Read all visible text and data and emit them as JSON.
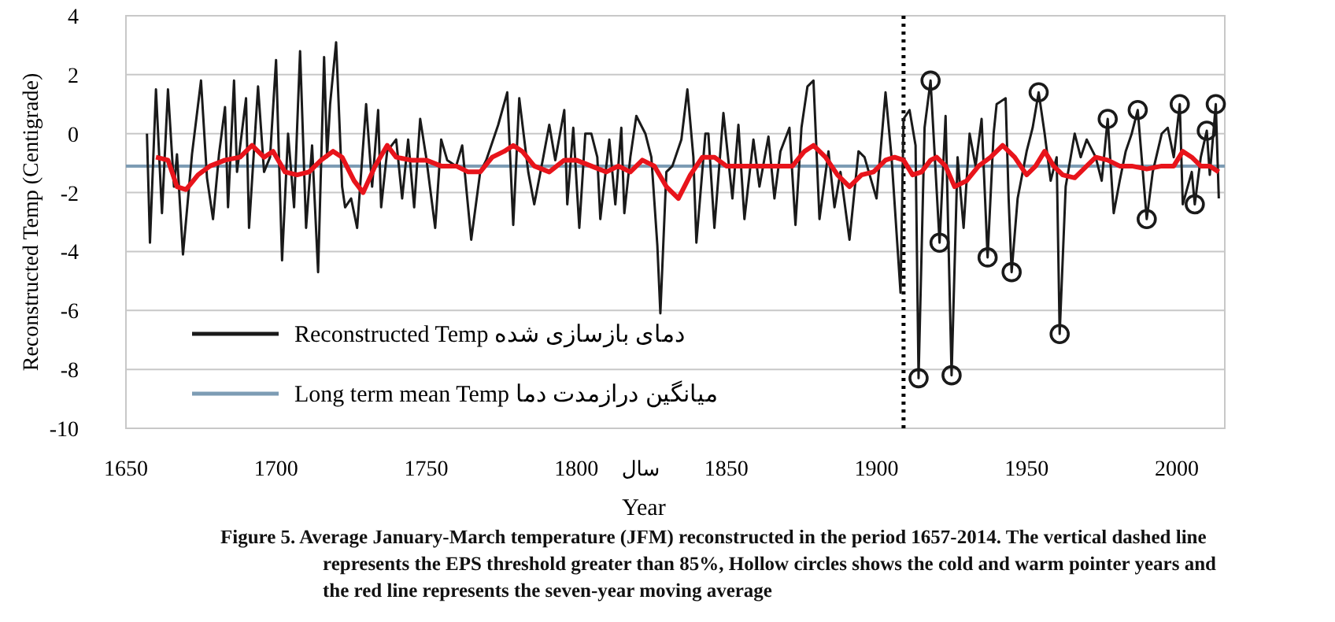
{
  "chart_data": {
    "type": "line",
    "xlabel": "Year",
    "ylabel": "Reconstructed Temp (Centigrade)",
    "annotations": [
      "سال",
      "Figure 5. Average January-March temperature (JFM) reconstructed in the period 1657-2014. The vertical dashed line represents the EPS threshold greater than 85%, Hollow circles shows the cold and warm pointer years and the red line represents the seven-year moving average"
    ],
    "xlim": [
      1650,
      2016
    ],
    "ylim": [
      -10,
      4
    ],
    "xticks": [
      1650,
      1700,
      1750,
      1800,
      1850,
      1900,
      1950,
      2000
    ],
    "yticks": [
      -10,
      -8,
      -6,
      -4,
      -2,
      0,
      2,
      4
    ],
    "grid": "y",
    "legend": "bottom left",
    "series": [
      {
        "name": "Reconstructed Temp دمای بازسازی شده",
        "color": "#1a1a1a",
        "x": [
          1657,
          1658,
          1660,
          1662,
          1664,
          1666,
          1667,
          1669,
          1672,
          1675,
          1677,
          1679,
          1681,
          1683,
          1684,
          1686,
          1687,
          1690,
          1691,
          1694,
          1696,
          1698,
          1700,
          1702,
          1704,
          1706,
          1708,
          1710,
          1712,
          1714,
          1716,
          1717,
          1718,
          1720,
          1722,
          1723,
          1725,
          1727,
          1730,
          1732,
          1734,
          1735,
          1737,
          1740,
          1742,
          1744,
          1746,
          1748,
          1750,
          1753,
          1755,
          1757,
          1760,
          1762,
          1765,
          1768,
          1770,
          1774,
          1777,
          1779,
          1781,
          1784,
          1786,
          1789,
          1791,
          1793,
          1796,
          1797,
          1799,
          1801,
          1803,
          1805,
          1807,
          1808,
          1811,
          1813,
          1815,
          1816,
          1818,
          1820,
          1823,
          1825,
          1827,
          1828,
          1830,
          1832,
          1835,
          1837,
          1839,
          1840,
          1843,
          1844,
          1846,
          1849,
          1852,
          1854,
          1856,
          1859,
          1861,
          1864,
          1866,
          1868,
          1871,
          1873,
          1875,
          1877,
          1879,
          1881,
          1884,
          1886,
          1888,
          1891,
          1894,
          1896,
          1900,
          1903,
          1905,
          1908,
          1909,
          1911,
          1913,
          1914,
          1916,
          1918,
          1921,
          1923,
          1925,
          1927,
          1929,
          1931,
          1933,
          1935,
          1937,
          1939,
          1940,
          1943,
          1944,
          1945,
          1947,
          1950,
          1952,
          1954,
          1956,
          1958,
          1960,
          1961,
          1963,
          1966,
          1968,
          1970,
          1973,
          1975,
          1977,
          1979,
          1981,
          1983,
          1985,
          1987,
          1990,
          1992,
          1995,
          1997,
          1999,
          2001,
          2002,
          2005,
          2006,
          2008,
          2010,
          2011,
          2013,
          2014
        ],
        "values": [
          0,
          -3.7,
          1.5,
          -2.7,
          1.5,
          -1.8,
          -0.7,
          -4.1,
          -0.7,
          1.8,
          -1.5,
          -2.9,
          -0.7,
          0.9,
          -2.5,
          1.8,
          -1.3,
          1.2,
          -3.2,
          1.6,
          -1.3,
          -0.8,
          2.5,
          -4.3,
          0,
          -2.5,
          2.8,
          -3.2,
          -0.4,
          -4.7,
          2.6,
          -0.8,
          1.0,
          3.1,
          -1.8,
          -2.5,
          -2.2,
          -3.2,
          1.0,
          -1.8,
          0.8,
          -2.5,
          -0.6,
          -0.2,
          -2.2,
          -0.2,
          -2.5,
          0.5,
          -0.8,
          -3.2,
          -0.2,
          -0.9,
          -1.1,
          -0.4,
          -3.6,
          -1.3,
          -0.9,
          0.3,
          1.4,
          -3.1,
          1.2,
          -1.3,
          -2.4,
          -0.8,
          0.3,
          -0.9,
          0.8,
          -2.4,
          0.2,
          -3.2,
          0,
          0,
          -0.8,
          -2.9,
          -0.2,
          -2.4,
          0.2,
          -2.7,
          -0.8,
          0.6,
          0,
          -0.8,
          -3.8,
          -6.1,
          -1.3,
          -1.1,
          -0.2,
          1.5,
          -0.8,
          -3.7,
          0,
          0,
          -3.2,
          0.7,
          -2.2,
          0.3,
          -2.9,
          -0.2,
          -1.8,
          -0.1,
          -2.2,
          -0.6,
          0.2,
          -3.1,
          0.2,
          1.6,
          1.8,
          -2.9,
          -0.6,
          -2.5,
          -1.3,
          -3.6,
          -0.6,
          -0.8,
          -2.2,
          1.4,
          -0.8,
          -5.4,
          0.5,
          0.8,
          -0.4,
          -8.3,
          0.2,
          1.8,
          -3.7,
          0.6,
          -8.2,
          -0.8,
          -3.2,
          0,
          -1.1,
          0.5,
          -4.2,
          0,
          1.0,
          1.2,
          -2.2,
          -4.7,
          -2.2,
          -0.6,
          0.2,
          1.4,
          0,
          -1.6,
          -0.8,
          -6.8,
          -1.8,
          0,
          -0.8,
          -0.2,
          -0.8,
          -1.6,
          0.5,
          -2.7,
          -1.6,
          -0.6,
          0,
          0.8,
          -2.9,
          -1.3,
          0,
          0.2,
          -0.8,
          1.0,
          -2.4,
          -1.3,
          -2.4,
          -0.8,
          0.1,
          -1.4,
          1.0,
          -2.2
        ]
      },
      {
        "color": "#e8141b",
        "x": [
          1660,
          1664,
          1667,
          1670,
          1674,
          1678,
          1683,
          1688,
          1692,
          1696,
          1699,
          1703,
          1707,
          1711,
          1715,
          1719,
          1722,
          1726,
          1729,
          1733,
          1737,
          1740,
          1745,
          1750,
          1755,
          1760,
          1764,
          1768,
          1772,
          1776,
          1779,
          1782,
          1786,
          1791,
          1796,
          1800,
          1805,
          1810,
          1814,
          1818,
          1822,
          1826,
          1830,
          1834,
          1838,
          1842,
          1846,
          1850,
          1856,
          1862,
          1868,
          1872,
          1876,
          1879,
          1883,
          1887,
          1891,
          1895,
          1899,
          1903,
          1906,
          1909,
          1912,
          1915,
          1918,
          1920,
          1923,
          1926,
          1930,
          1934,
          1938,
          1942,
          1946,
          1950,
          1953,
          1956,
          1959,
          1962,
          1966,
          1970,
          1973,
          1977,
          1981,
          1985,
          1990,
          1995,
          1999,
          2002,
          2005,
          2008,
          2011,
          2014
        ],
        "values": [
          -0.8,
          -0.9,
          -1.8,
          -1.9,
          -1.4,
          -1.1,
          -0.9,
          -0.8,
          -0.4,
          -0.8,
          -0.6,
          -1.3,
          -1.4,
          -1.3,
          -0.9,
          -0.6,
          -0.8,
          -1.6,
          -2.0,
          -1.1,
          -0.4,
          -0.8,
          -0.9,
          -0.9,
          -1.1,
          -1.1,
          -1.3,
          -1.3,
          -0.8,
          -0.6,
          -0.4,
          -0.6,
          -1.1,
          -1.3,
          -0.9,
          -0.9,
          -1.1,
          -1.3,
          -1.1,
          -1.3,
          -0.9,
          -1.1,
          -1.8,
          -2.2,
          -1.4,
          -0.8,
          -0.8,
          -1.1,
          -1.1,
          -1.1,
          -1.1,
          -1.1,
          -0.6,
          -0.4,
          -0.8,
          -1.4,
          -1.8,
          -1.4,
          -1.3,
          -0.9,
          -0.8,
          -0.9,
          -1.4,
          -1.3,
          -0.9,
          -0.8,
          -1.1,
          -1.8,
          -1.6,
          -1.1,
          -0.8,
          -0.4,
          -0.8,
          -1.4,
          -1.1,
          -0.6,
          -1.1,
          -1.4,
          -1.5,
          -1.1,
          -0.8,
          -0.9,
          -1.1,
          -1.1,
          -1.2,
          -1.1,
          -1.1,
          -0.6,
          -0.8,
          -1.1,
          -1.1,
          -1.3
        ]
      },
      {
        "type": "scatter",
        "marker": "circle",
        "color": "#1a1a1a",
        "x": [
          1914,
          1918,
          1921,
          1925,
          1937,
          1945,
          1954,
          1961,
          1977,
          1987,
          1990,
          2001,
          2006,
          2010,
          2013
        ],
        "values": [
          -8.3,
          1.8,
          -3.7,
          -8.2,
          -4.2,
          -4.7,
          1.4,
          -6.8,
          0.5,
          0.8,
          -2.9,
          1.0,
          -2.4,
          0.1,
          1.0
        ]
      }
    ],
    "ref_lines": [
      {
        "axis": "y",
        "value": -1.1,
        "label": "Long term mean Temp میانگین درازمدت دما",
        "color": "#7d9cb4"
      },
      {
        "axis": "x",
        "value": 1909,
        "color": "#000000",
        "line_style": "dotted"
      }
    ]
  }
}
